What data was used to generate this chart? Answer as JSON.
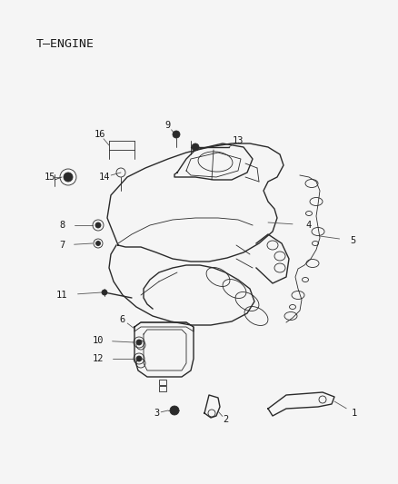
{
  "title": "T–ENGINE",
  "background_color": "#f5f5f5",
  "text_color": "#1a1a1a",
  "line_color": "#2a2a2a",
  "fig_width": 4.38,
  "fig_height": 5.33,
  "dpi": 100
}
